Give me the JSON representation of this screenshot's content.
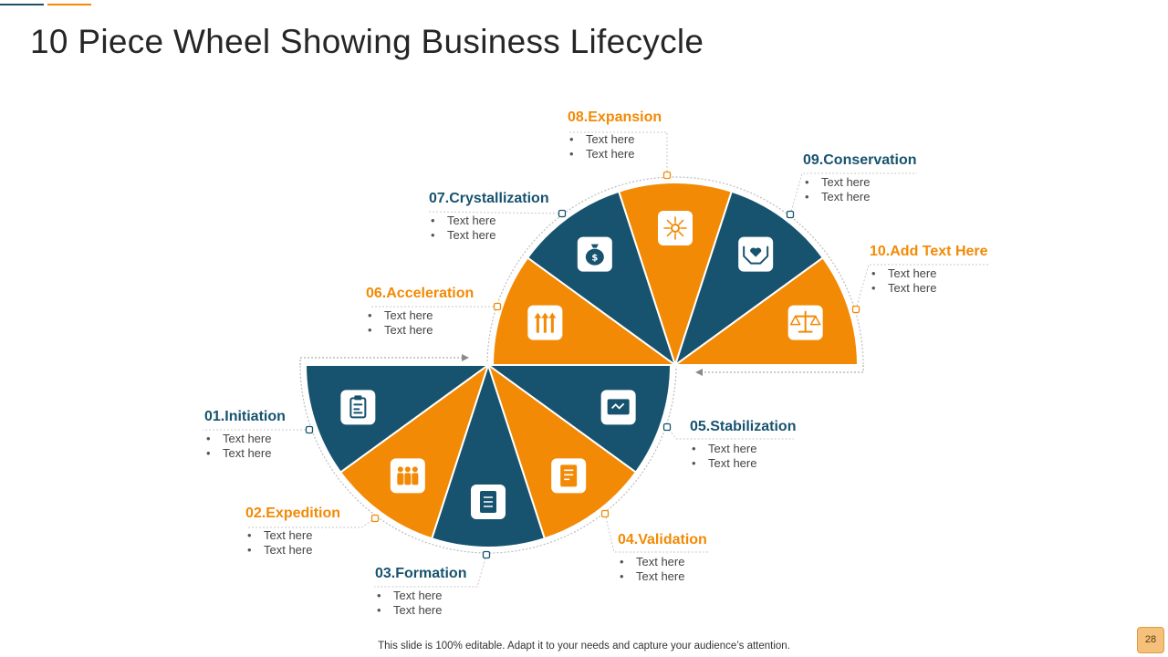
{
  "title": "10 Piece Wheel Showing Business Lifecycle",
  "colors": {
    "orange": "#f28a05",
    "navy": "#17536f",
    "accent_line_blue": "#1f4e6b",
    "accent_line_orange": "#f28a05"
  },
  "stages": [
    {
      "heading": "01.Initiation",
      "bullets": [
        "Text here",
        "Text here"
      ],
      "color": "navy",
      "icon": "clipboard-icon"
    },
    {
      "heading": "02.Expedition",
      "bullets": [
        "Text here",
        "Text here"
      ],
      "color": "orange",
      "icon": "team-icon"
    },
    {
      "heading": "03.Formation",
      "bullets": [
        "Text here",
        "Text here"
      ],
      "color": "navy",
      "icon": "checklist-icon"
    },
    {
      "heading": "04.Validation",
      "bullets": [
        "Text here",
        "Text here"
      ],
      "color": "orange",
      "icon": "document-icon"
    },
    {
      "heading": "05.Stabilization",
      "bullets": [
        "Text here",
        "Text here"
      ],
      "color": "navy",
      "icon": "trend-monitor-icon"
    },
    {
      "heading": "06.Acceleration",
      "bullets": [
        "Text here",
        "Text here"
      ],
      "color": "orange",
      "icon": "up-arrows-icon"
    },
    {
      "heading": "07.Crystallization",
      "bullets": [
        "Text here",
        "Text here"
      ],
      "color": "navy",
      "icon": "money-bag-icon"
    },
    {
      "heading": "08.Expansion",
      "bullets": [
        "Text here",
        "Text here"
      ],
      "color": "orange",
      "icon": "expand-network-icon"
    },
    {
      "heading": "09.Conservation",
      "bullets": [
        "Text here",
        "Text here"
      ],
      "color": "navy",
      "icon": "hands-heart-icon"
    },
    {
      "heading": "10.Add Text Here",
      "bullets": [
        "Text here",
        "Text here"
      ],
      "color": "orange",
      "icon": "balance-scale-icon"
    }
  ],
  "footer": "This slide is 100% editable. Adapt it to your needs and capture your audience’s attention.",
  "page_number": "28"
}
